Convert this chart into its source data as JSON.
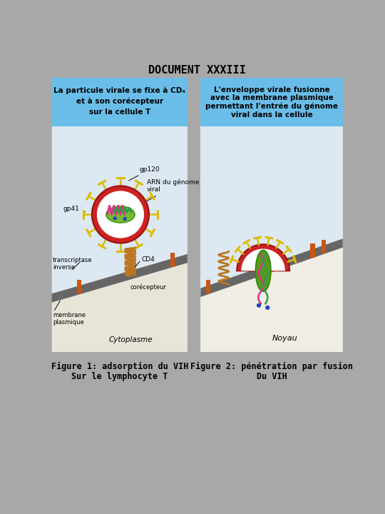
{
  "title": "DOCUMENT XXXIII",
  "title_fontsize": 11,
  "bg_color": "#a8a8a8",
  "blue_header_color": "#6abde8",
  "panel1_bg": "#dce8f0",
  "panel2_bg": "#dce8f0",
  "cyto_color": "#e8e4d8",
  "membrane_color": "#666666",
  "fig1_header_line1": "La particule virale se fixe à CD",
  "fig1_header_sub": "4",
  "fig1_header_line2": "et à son corécepteur",
  "fig1_header_line3": "sur la cellule T",
  "fig2_header": "L'enveloppe virale fusionne\navec la membrane plasmique\npermettant l'entrée du génome\nviral dans la cellule",
  "fig1_caption_line1": "Figure 1: adsorption du VIH",
  "fig1_caption_line2": "Sur le lymphocyte T",
  "fig2_caption_line1": "Figure 2: pénétration par fusion",
  "fig2_caption_line2": "Du VIH",
  "caption_fontsize": 8.5,
  "header_fontsize": 7.5,
  "label_fontsize": 6.0,
  "virus_color_outer": "#cc2222",
  "virus_color_inner": "#ffffff",
  "genome_green": "#559922",
  "rna_pink": "#dd3388",
  "rna_green": "#339944",
  "dot_blue": "#2244bb",
  "spike_yellow": "#ddbb00",
  "coil_brown": "#bb7722",
  "receptor_orange": "#cc5511"
}
